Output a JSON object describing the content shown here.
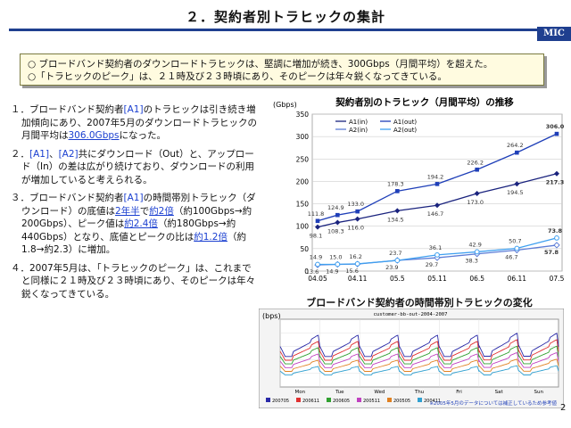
{
  "header": {
    "title": "２．契約者別トラヒックの集計",
    "logo": "MIC"
  },
  "summary": {
    "line1": "○ ブロードバンド契約者のダウンロードトラヒックは、堅調に増加が続き、300Gbps（月間平均）を超えた。",
    "line2": "○「トラヒックのピーク」は、２１時及び２３時頃にあり、そのピークは年々鋭くなってきている。"
  },
  "points": {
    "p1": {
      "a": "１．ブロードバンド契約者",
      "b": "[A1]",
      "c": "のトラヒックは引き続き増加傾向にあり、2007年5月のダウンロードトラヒックの月間平均は",
      "d": "306.0Gbps",
      "e": "になった。"
    },
    "p2": {
      "a": "２．",
      "b": "[A1]",
      "c": "、",
      "d": "[A2]",
      "e": "共にダウンロード（Out）と、アップロード（In）の差は広がり続けており、ダウンロードの利用が増加していると考えられる。"
    },
    "p3": {
      "a": "３．ブロードバンド契約者",
      "b": "[A1]",
      "c": "の時間帯別トラヒック（ダウンロード）の底値は",
      "d": "2年半",
      "e": "で",
      "f": "約2倍",
      "g": "（約100Gbps→約200Gbps）、ピーク値は",
      "h": "約2.4倍",
      "i": "（約180Gbps→約440Gbps）となり、底値とピークの比は",
      "j": "約1.2倍",
      "k": "（約1.8→約2.3）に増加。"
    },
    "p4": {
      "a": "４．2007年5月は、「トラヒックのピーク」は、これまでと同様に２１時及び２３時頃にあり、そのピークは年々鋭くなってきている。"
    }
  },
  "chart_data": [
    {
      "type": "line",
      "title": "契約者別のトラヒック（月間平均）の推移",
      "ylabel": "(Gbps)",
      "ylim": [
        0,
        350
      ],
      "yticks": [
        0,
        50,
        100,
        150,
        200,
        250,
        300,
        350
      ],
      "x": [
        "04.05",
        "04.11",
        "05.5",
        "05.11",
        "06.5",
        "06.11",
        "07.5"
      ],
      "grid": true,
      "legend": "top-left",
      "series": [
        {
          "name": "A1(in)",
          "color": "#1a237e",
          "marker": "diamond",
          "points": [
            [
              0,
              98.1
            ],
            [
              0.5,
              108.3
            ],
            [
              1,
              116.0
            ],
            [
              2,
              134.5
            ],
            [
              3,
              146.7
            ],
            [
              4,
              173.0
            ],
            [
              5,
              194.5
            ],
            [
              6,
              217.3
            ]
          ],
          "labels": [
            "98.1",
            "108.3",
            "116.0",
            "134.5",
            "146.7",
            "173.0",
            "194.5",
            "217.3"
          ]
        },
        {
          "name": "A1(out)",
          "color": "#1f3fb8",
          "marker": "square",
          "points": [
            [
              0,
              111.8
            ],
            [
              0.5,
              124.9
            ],
            [
              1,
              133.0
            ],
            [
              2,
              178.3
            ],
            [
              3,
              194.2
            ],
            [
              4,
              226.2
            ],
            [
              5,
              264.2
            ],
            [
              6,
              306.0
            ]
          ],
          "labels": [
            "111.8",
            "124.9",
            "133.0",
            "178.3",
            "194.2",
            "226.2",
            "264.2",
            "306.0"
          ]
        },
        {
          "name": "A2(in)",
          "color": "#5c7cd6",
          "marker": "diamond-open",
          "points": [
            [
              0,
              13.6
            ],
            [
              0.5,
              14.9
            ],
            [
              1,
              15.6
            ],
            [
              2,
              23.9
            ],
            [
              3,
              29.7
            ],
            [
              4,
              38.3
            ],
            [
              5,
              46.7
            ],
            [
              6,
              57.8
            ]
          ],
          "labels": [
            "13.6",
            "14.9",
            "15.6",
            "23.9",
            "29.7",
            "38.3",
            "46.7",
            "57.8"
          ]
        },
        {
          "name": "A2(out)",
          "color": "#3fa0f0",
          "marker": "circle-open",
          "points": [
            [
              0,
              14.9
            ],
            [
              0.5,
              15.0
            ],
            [
              1,
              16.2
            ],
            [
              2,
              23.7
            ],
            [
              3,
              36.1
            ],
            [
              4,
              42.9
            ],
            [
              5,
              50.7
            ],
            [
              6,
              73.8
            ]
          ],
          "labels": [
            "14.9",
            "15.0",
            "16.2",
            "23.7",
            "36.1",
            "42.9",
            "50.7",
            "73.8"
          ]
        }
      ]
    },
    {
      "type": "line",
      "title": "ブロードバンド契約者の時間帯別トラヒックの変化",
      "ylabel": "(bps)",
      "inner_title": "customer-bb-out-2004-2007",
      "x": [
        "Mon",
        "Tue",
        "Wed",
        "Thu",
        "Fri",
        "Sat",
        "Sun"
      ],
      "legend": "bottom",
      "series": [
        {
          "name": "200705",
          "color": "#2a2aa8"
        },
        {
          "name": "200611",
          "color": "#e03030"
        },
        {
          "name": "200605",
          "color": "#30a030"
        },
        {
          "name": "200511",
          "color": "#c040c0"
        },
        {
          "name": "200505",
          "color": "#e08020"
        },
        {
          "name": "200411",
          "color": "#30a0d0"
        }
      ],
      "note": "※2005年5月のデータについては補正しているため参考値"
    }
  ],
  "page_number": "2"
}
